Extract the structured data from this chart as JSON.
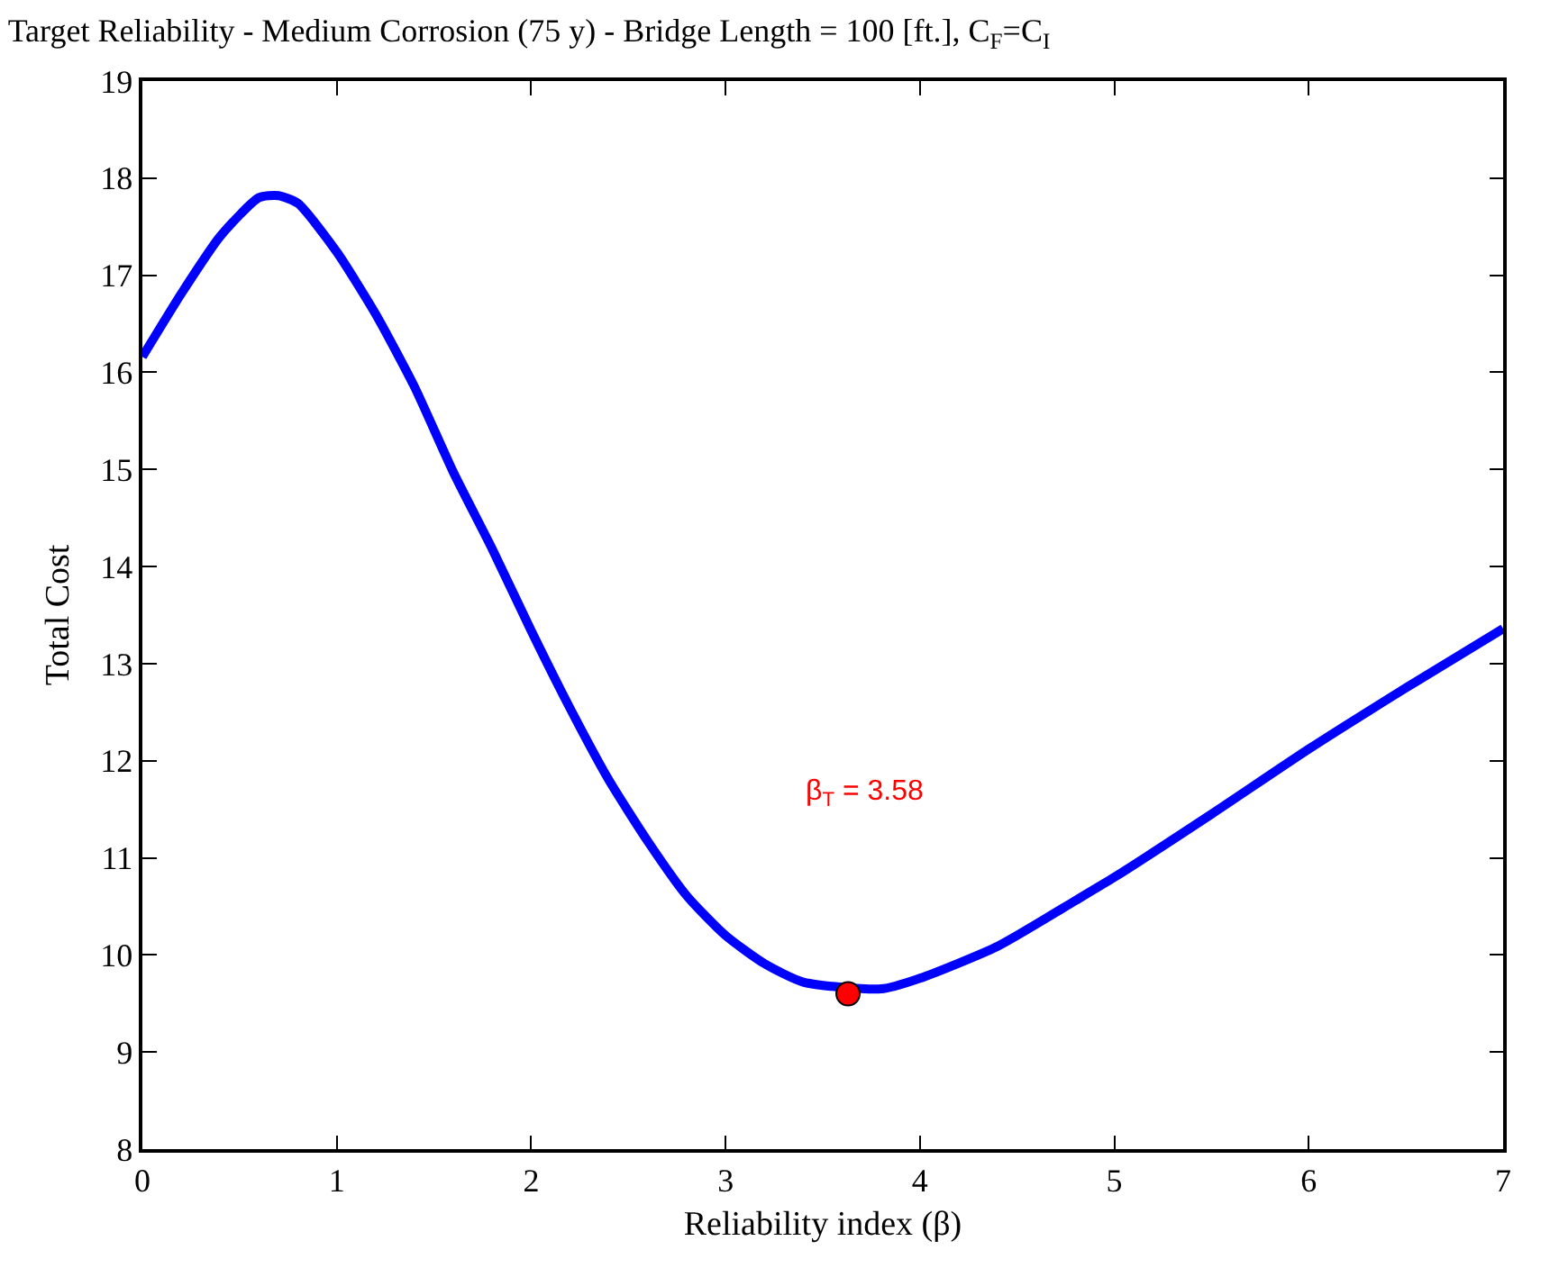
{
  "chart_data": {
    "type": "line",
    "title": "Target Reliability - Medium Corrosion (75 y) - Bridge Length = 100 [ft.], C$_{F}$=C$_{I}$",
    "xlabel": "Reliability index (β)",
    "ylabel": "Total Cost",
    "xlim": [
      0,
      7
    ],
    "xticks": [
      0,
      1,
      2,
      3,
      4,
      5,
      6,
      7
    ],
    "ylim": [
      8,
      19
    ],
    "yticks": [
      8,
      9,
      10,
      11,
      12,
      13,
      14,
      15,
      16,
      17,
      18,
      19
    ],
    "marker": "none",
    "line_style": "solid",
    "series": [
      {
        "color": "#0000ff",
        "x": [
          0,
          0.2,
          0.4,
          0.6,
          0.7,
          0.8,
          1.0,
          1.2,
          1.4,
          1.6,
          1.8,
          2.0,
          2.2,
          2.4,
          2.6,
          2.8,
          3.0,
          3.2,
          3.4,
          3.8,
          4.0,
          4.4,
          4.8,
          5.0,
          5.5,
          6.0,
          6.5,
          7.0
        ],
        "values": [
          16.16,
          16.81,
          17.4,
          17.8,
          17.82,
          17.74,
          17.24,
          16.6,
          15.85,
          14.97,
          14.18,
          13.34,
          12.54,
          11.8,
          11.17,
          10.61,
          10.2,
          9.91,
          9.72,
          9.65,
          9.76,
          10.09,
          10.56,
          10.8,
          11.45,
          12.12,
          12.75,
          13.36
        ]
      },
      {
        "type": "scatter",
        "color": "#ff0000",
        "marker": "circle",
        "x": [
          3.63
        ],
        "values": [
          9.6
        ]
      }
    ],
    "annotations": [
      "β$_{T}$ = 3.58"
    ]
  }
}
